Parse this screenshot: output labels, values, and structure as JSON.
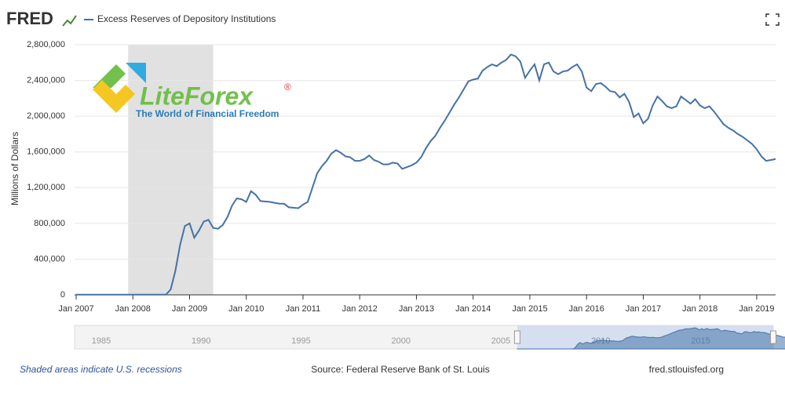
{
  "chart_data": {
    "type": "line",
    "brand": "FRED",
    "title": "Excess Reserves of Depository Institutions",
    "ylabel": "Millions of Dollars",
    "footer_left": "Shaded areas indicate U.S. recessions",
    "footer_center": "Source: Federal Reserve Bank of St. Louis",
    "footer_right": "fred.stlouisfed.org",
    "watermark": {
      "name": "LiteForex",
      "mark": "®",
      "tagline": "The World of Financial Freedom"
    },
    "grid": true,
    "recessions": [
      [
        "2007-12",
        "2009-06"
      ]
    ],
    "xlim": [
      "2007-01",
      "2019-05"
    ],
    "xticks": [
      {
        "value": "2007-01",
        "label": "Jan 2007"
      },
      {
        "value": "2008-01",
        "label": "Jan 2008"
      },
      {
        "value": "2009-01",
        "label": "Jan 2009"
      },
      {
        "value": "2010-01",
        "label": "Jan 2010"
      },
      {
        "value": "2011-01",
        "label": "Jan 2011"
      },
      {
        "value": "2012-01",
        "label": "Jan 2012"
      },
      {
        "value": "2013-01",
        "label": "Jan 2013"
      },
      {
        "value": "2014-01",
        "label": "Jan 2014"
      },
      {
        "value": "2015-01",
        "label": "Jan 2015"
      },
      {
        "value": "2016-01",
        "label": "Jan 2016"
      },
      {
        "value": "2017-01",
        "label": "Jan 2017"
      },
      {
        "value": "2018-01",
        "label": "Jan 2018"
      },
      {
        "value": "2019-01",
        "label": "Jan 2019"
      }
    ],
    "ylim": [
      0,
      2800000
    ],
    "yticks": [
      0,
      {
        "value": 400000,
        "label": "400,000"
      },
      {
        "value": 800000,
        "label": "800,000"
      },
      {
        "value": 1200000,
        "label": "1,200,000"
      },
      {
        "value": 1600000,
        "label": "1,600,000"
      },
      {
        "value": 2000000,
        "label": "2,000,000"
      },
      {
        "value": 2400000,
        "label": "2,400,000"
      },
      {
        "value": 2800000,
        "label": "2,800,000"
      }
    ],
    "navigator": {
      "labels": [
        "1985",
        "1990",
        "1995",
        "2000",
        "2005",
        "2010",
        "2015"
      ]
    },
    "x": [
      "2007-01",
      "2007-07",
      "2008-01",
      "2008-07",
      "2008-08",
      "2008-09",
      "2008-10",
      "2008-11",
      "2008-12",
      "2009-01",
      "2009-02",
      "2009-03",
      "2009-04",
      "2009-05",
      "2009-06",
      "2009-07",
      "2009-08",
      "2009-09",
      "2009-10",
      "2009-11",
      "2009-12",
      "2010-01",
      "2010-02",
      "2010-03",
      "2010-04",
      "2010-06",
      "2010-08",
      "2010-09",
      "2010-10",
      "2010-12",
      "2011-01",
      "2011-02",
      "2011-03",
      "2011-04",
      "2011-05",
      "2011-06",
      "2011-07",
      "2011-08",
      "2011-09",
      "2011-10",
      "2011-11",
      "2011-12",
      "2012-01",
      "2012-02",
      "2012-03",
      "2012-04",
      "2012-05",
      "2012-06",
      "2012-07",
      "2012-08",
      "2012-09",
      "2012-10",
      "2012-11",
      "2012-12",
      "2013-01",
      "2013-02",
      "2013-03",
      "2013-04",
      "2013-05",
      "2013-06",
      "2013-07",
      "2013-08",
      "2013-09",
      "2013-10",
      "2013-11",
      "2013-12",
      "2014-01",
      "2014-02",
      "2014-03",
      "2014-04",
      "2014-05",
      "2014-06",
      "2014-07",
      "2014-08",
      "2014-09",
      "2014-10",
      "2014-11",
      "2014-12",
      "2015-01",
      "2015-02",
      "2015-03",
      "2015-04",
      "2015-05",
      "2015-06",
      "2015-07",
      "2015-08",
      "2015-09",
      "2015-10",
      "2015-11",
      "2015-12",
      "2016-01",
      "2016-02",
      "2016-03",
      "2016-04",
      "2016-05",
      "2016-06",
      "2016-07",
      "2016-08",
      "2016-09",
      "2016-10",
      "2016-11",
      "2016-12",
      "2017-01",
      "2017-02",
      "2017-03",
      "2017-04",
      "2017-05",
      "2017-06",
      "2017-07",
      "2017-08",
      "2017-09",
      "2017-10",
      "2017-11",
      "2017-12",
      "2018-01",
      "2018-02",
      "2018-03",
      "2018-04",
      "2018-05",
      "2018-06",
      "2018-07",
      "2018-08",
      "2018-09",
      "2018-10",
      "2018-11",
      "2018-12",
      "2019-01",
      "2019-02",
      "2019-03",
      "2019-04",
      "2019-05"
    ],
    "series": [
      {
        "name": "Excess Reserves of Depository Institutions",
        "color": "#4572a7",
        "values": [
          2000,
          2000,
          2000,
          2000,
          2000,
          60000,
          270000,
          560000,
          770000,
          800000,
          640000,
          720000,
          820000,
          840000,
          750000,
          740000,
          780000,
          870000,
          1000000,
          1080000,
          1070000,
          1040000,
          1160000,
          1120000,
          1050000,
          1040000,
          1020000,
          1020000,
          980000,
          970000,
          1010000,
          1040000,
          1200000,
          1360000,
          1440000,
          1500000,
          1580000,
          1620000,
          1590000,
          1550000,
          1540000,
          1500000,
          1500000,
          1520000,
          1560000,
          1510000,
          1490000,
          1460000,
          1460000,
          1480000,
          1470000,
          1410000,
          1430000,
          1450000,
          1480000,
          1540000,
          1640000,
          1720000,
          1780000,
          1870000,
          1950000,
          2040000,
          2130000,
          2210000,
          2300000,
          2390000,
          2410000,
          2420000,
          2510000,
          2550000,
          2580000,
          2560000,
          2600000,
          2630000,
          2690000,
          2670000,
          2610000,
          2430000,
          2510000,
          2580000,
          2400000,
          2580000,
          2600000,
          2500000,
          2470000,
          2500000,
          2510000,
          2550000,
          2580000,
          2500000,
          2320000,
          2280000,
          2360000,
          2370000,
          2330000,
          2280000,
          2270000,
          2210000,
          2250000,
          2160000,
          1990000,
          2030000,
          1920000,
          1970000,
          2120000,
          2220000,
          2170000,
          2110000,
          2090000,
          2110000,
          2220000,
          2180000,
          2140000,
          2190000,
          2120000,
          2090000,
          2110000,
          2050000,
          1980000,
          1910000,
          1870000,
          1840000,
          1800000,
          1770000,
          1730000,
          1690000,
          1630000,
          1550000,
          1500000,
          1510000,
          1520000
        ]
      }
    ]
  }
}
